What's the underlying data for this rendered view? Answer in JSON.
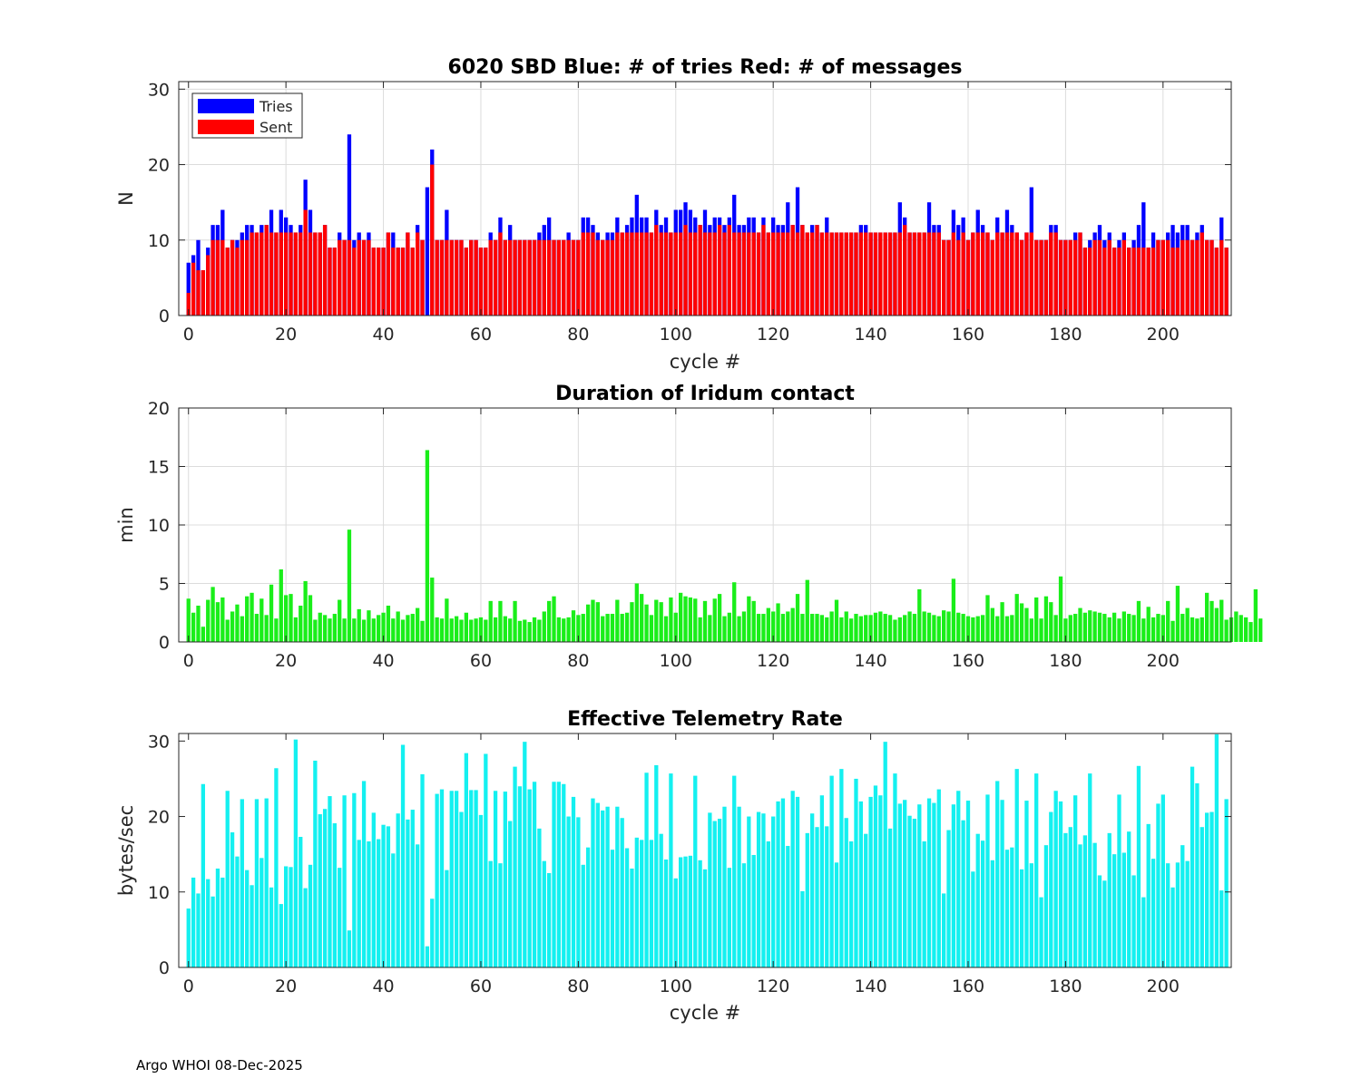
{
  "footer": "Argo WHOI 08-Dec-2025",
  "colors": {
    "tries": "#0000ff",
    "sent": "#ff0000",
    "duration": "#1aee1a",
    "rate": "#14f0f0",
    "grid": "#dcdcdc"
  },
  "chart_data": [
    {
      "type": "bar",
      "title": "6020 SBD  Blue: # of tries   Red: # of messages",
      "xlabel": "cycle #",
      "ylabel": "N",
      "xlim": [
        -2,
        214
      ],
      "ylim": [
        0,
        31
      ],
      "xticks": [
        0,
        20,
        40,
        60,
        80,
        100,
        120,
        140,
        160,
        180,
        200
      ],
      "yticks": [
        0,
        10,
        20,
        30
      ],
      "grid": true,
      "legend": {
        "position": "top-left",
        "entries": [
          "Tries",
          "Sent"
        ]
      },
      "x_start": 0,
      "series": [
        {
          "name": "Tries",
          "color": "#0000ff",
          "values": [
            7,
            8,
            10,
            6,
            9,
            12,
            12,
            14,
            9,
            10,
            10,
            11,
            12,
            12,
            11,
            12,
            12,
            14,
            11,
            14,
            13,
            12,
            11,
            12,
            18,
            14,
            11,
            11,
            12,
            9,
            9,
            11,
            10,
            24,
            10,
            11,
            10,
            11,
            9,
            9,
            9,
            11,
            11,
            9,
            9,
            11,
            9,
            12,
            10,
            17,
            22,
            10,
            10,
            14,
            10,
            10,
            10,
            9,
            10,
            10,
            9,
            9,
            11,
            10,
            13,
            10,
            12,
            10,
            10,
            10,
            10,
            10,
            11,
            12,
            13,
            10,
            10,
            10,
            11,
            10,
            10,
            13,
            13,
            12,
            11,
            10,
            11,
            11,
            13,
            11,
            12,
            13,
            16,
            13,
            13,
            11,
            14,
            12,
            13,
            11,
            14,
            14,
            15,
            14,
            13,
            12,
            14,
            12,
            13,
            13,
            12,
            13,
            16,
            12,
            12,
            13,
            13,
            11,
            13,
            11,
            13,
            12,
            12,
            15,
            12,
            17,
            12,
            11,
            12,
            12,
            11,
            13,
            11,
            11,
            11,
            11,
            11,
            11,
            12,
            12,
            11,
            11,
            11,
            11,
            11,
            11,
            15,
            13,
            11,
            11,
            11,
            11,
            15,
            12,
            12,
            10,
            10,
            14,
            12,
            13,
            10,
            11,
            14,
            12,
            11,
            10,
            13,
            11,
            14,
            12,
            11,
            10,
            11,
            17,
            10,
            10,
            10,
            12,
            12,
            10,
            10,
            10,
            11,
            11,
            9,
            10,
            11,
            12,
            10,
            11,
            9,
            10,
            11,
            9,
            10,
            12,
            15,
            9,
            11,
            10,
            10,
            11,
            12,
            11,
            12,
            12,
            10,
            11,
            12,
            10,
            10,
            9,
            13,
            9
          ]
        },
        {
          "name": "Sent",
          "color": "#ff0000",
          "values": [
            3,
            7,
            6,
            6,
            8,
            10,
            10,
            10,
            9,
            10,
            9,
            10,
            10,
            11,
            11,
            11,
            12,
            11,
            11,
            11,
            11,
            11,
            11,
            11,
            14,
            11,
            11,
            11,
            12,
            9,
            9,
            10,
            10,
            10,
            9,
            10,
            10,
            10,
            9,
            9,
            9,
            11,
            9,
            9,
            9,
            11,
            9,
            11,
            10,
            0,
            20,
            10,
            10,
            10,
            10,
            10,
            10,
            9,
            10,
            10,
            9,
            9,
            10,
            10,
            11,
            10,
            10,
            10,
            10,
            10,
            10,
            10,
            10,
            10,
            10,
            10,
            10,
            10,
            10,
            10,
            10,
            11,
            11,
            11,
            10,
            10,
            10,
            10,
            11,
            11,
            11,
            11,
            11,
            11,
            11,
            11,
            12,
            11,
            11,
            11,
            11,
            11,
            12,
            11,
            11,
            12,
            11,
            11,
            11,
            12,
            11,
            12,
            11,
            11,
            11,
            11,
            11,
            11,
            12,
            11,
            11,
            11,
            11,
            11,
            12,
            11,
            12,
            11,
            11,
            12,
            11,
            11,
            11,
            11,
            11,
            11,
            11,
            11,
            11,
            11,
            11,
            11,
            11,
            11,
            11,
            11,
            11,
            12,
            11,
            11,
            11,
            11,
            11,
            11,
            11,
            10,
            10,
            11,
            10,
            11,
            10,
            11,
            11,
            11,
            11,
            10,
            11,
            11,
            11,
            11,
            11,
            10,
            11,
            11,
            10,
            10,
            10,
            11,
            11,
            10,
            10,
            10,
            10,
            11,
            9,
            9,
            10,
            10,
            9,
            10,
            9,
            9,
            10,
            9,
            9,
            9,
            9,
            9,
            9,
            10,
            10,
            10,
            9,
            9,
            10,
            10,
            10,
            10,
            11,
            10,
            10,
            9,
            10,
            9
          ]
        }
      ]
    },
    {
      "type": "bar",
      "title": "Duration of Iridum contact",
      "xlabel": "",
      "ylabel": "min",
      "xlim": [
        -2,
        214
      ],
      "ylim": [
        0,
        20
      ],
      "xticks": [
        0,
        20,
        40,
        60,
        80,
        100,
        120,
        140,
        160,
        180,
        200
      ],
      "yticks": [
        0,
        5,
        10,
        15,
        20
      ],
      "grid": true,
      "x_start": 0,
      "series": [
        {
          "name": "Duration",
          "color": "#1aee1a",
          "values": [
            3.7,
            2.5,
            3.1,
            1.3,
            3.6,
            4.7,
            3.4,
            3.8,
            1.9,
            2.6,
            3.2,
            2.2,
            3.9,
            4.2,
            2.4,
            3.7,
            2.3,
            4.9,
            2.0,
            6.2,
            4.0,
            4.1,
            2.1,
            3.1,
            5.2,
            4.0,
            1.9,
            2.5,
            2.3,
            2.0,
            2.4,
            3.6,
            2.0,
            9.6,
            2.0,
            2.8,
            1.9,
            2.7,
            2.0,
            2.3,
            2.5,
            3.1,
            2.0,
            2.6,
            1.9,
            2.3,
            2.4,
            2.9,
            1.8,
            16.4,
            5.5,
            2.1,
            2.0,
            3.7,
            2.0,
            2.2,
            1.9,
            2.5,
            1.9,
            2.0,
            2.1,
            1.9,
            3.5,
            2.1,
            3.5,
            2.2,
            2.0,
            3.5,
            1.8,
            1.9,
            1.7,
            2.1,
            1.9,
            2.6,
            3.5,
            3.9,
            2.1,
            2.0,
            2.1,
            2.7,
            2.3,
            2.4,
            3.2,
            3.6,
            3.4,
            2.2,
            2.4,
            2.4,
            3.6,
            2.4,
            2.5,
            3.4,
            5.0,
            4.1,
            3.2,
            2.3,
            3.6,
            3.4,
            2.2,
            3.8,
            2.5,
            4.2,
            3.9,
            3.8,
            3.7,
            2.1,
            3.5,
            2.3,
            3.7,
            4.1,
            2.2,
            2.5,
            5.1,
            2.2,
            2.6,
            3.9,
            3.5,
            2.4,
            2.4,
            2.9,
            2.6,
            3.3,
            2.4,
            2.6,
            2.9,
            4.1,
            2.4,
            5.3,
            2.4,
            2.4,
            2.3,
            2.1,
            2.6,
            3.6,
            2.1,
            2.6,
            2.0,
            2.4,
            2.2,
            2.3,
            2.3,
            2.5,
            2.6,
            2.4,
            2.3,
            1.9,
            2.1,
            2.3,
            2.6,
            2.4,
            4.5,
            2.6,
            2.5,
            2.3,
            2.2,
            2.7,
            2.6,
            5.4,
            2.5,
            2.4,
            2.2,
            2.1,
            2.2,
            2.3,
            4.0,
            2.9,
            2.2,
            3.4,
            2.2,
            2.3,
            4.1,
            3.3,
            2.9,
            2.0,
            3.8,
            2.0,
            3.9,
            3.4,
            2.3,
            5.6,
            2.0,
            2.3,
            2.4,
            2.9,
            2.5,
            2.7,
            2.6,
            2.5,
            2.4,
            2.1,
            2.5,
            2.0,
            2.6,
            2.4,
            2.3,
            3.5,
            2.0,
            3.0,
            2.1,
            2.4,
            2.3,
            3.5,
            1.8,
            4.8,
            2.4,
            2.9,
            2.1,
            2.0,
            2.1,
            4.2,
            3.5,
            2.9,
            3.6,
            1.9,
            2.1,
            2.6,
            2.3,
            2.1,
            1.7,
            4.5,
            2.0
          ]
        }
      ]
    },
    {
      "type": "bar",
      "title": "Effective Telemetry Rate",
      "xlabel": "cycle #",
      "ylabel": "bytes/sec",
      "xlim": [
        -2,
        214
      ],
      "ylim": [
        0,
        31
      ],
      "xticks": [
        0,
        20,
        40,
        60,
        80,
        100,
        120,
        140,
        160,
        180,
        200
      ],
      "yticks": [
        0,
        10,
        20,
        30
      ],
      "grid": false,
      "x_start": 0,
      "series": [
        {
          "name": "Rate",
          "color": "#14f0f0",
          "values": [
            7.8,
            11.9,
            9.8,
            24.3,
            11.7,
            9.4,
            13.1,
            11.9,
            23.4,
            17.9,
            14.7,
            22.3,
            12.9,
            10.9,
            22.3,
            14.5,
            22.4,
            10.6,
            26.4,
            8.4,
            13.4,
            13.3,
            30.2,
            17.3,
            10.5,
            13.6,
            27.4,
            20.3,
            21.0,
            22.7,
            19.1,
            13.2,
            22.8,
            4.9,
            23.1,
            16.9,
            24.7,
            16.7,
            20.5,
            17.0,
            18.9,
            18.7,
            15.1,
            20.4,
            29.5,
            19.6,
            20.9,
            16.3,
            25.6,
            2.8,
            9.1,
            23.0,
            23.6,
            12.9,
            23.4,
            23.4,
            20.6,
            28.4,
            23.5,
            23.5,
            20.2,
            28.3,
            14.1,
            23.4,
            13.8,
            23.3,
            19.4,
            26.6,
            24.0,
            29.9,
            23.6,
            24.6,
            18.4,
            14.1,
            12.5,
            24.6,
            24.6,
            24.3,
            20.0,
            22.6,
            19.9,
            13.6,
            15.9,
            22.4,
            21.8,
            20.8,
            21.3,
            15.6,
            21.3,
            19.8,
            15.8,
            13.1,
            17.2,
            16.9,
            25.8,
            16.9,
            26.8,
            17.7,
            14.3,
            25.7,
            11.8,
            14.6,
            14.7,
            14.8,
            25.4,
            14.2,
            13.0,
            20.5,
            19.4,
            19.7,
            21.3,
            13.2,
            25.4,
            21.3,
            13.8,
            20.0,
            14.9,
            20.6,
            20.4,
            16.7,
            20.0,
            22.0,
            22.4,
            16.1,
            23.4,
            22.6,
            10.1,
            17.8,
            20.4,
            18.6,
            22.8,
            18.7,
            25.4,
            13.9,
            26.3,
            19.8,
            16.7,
            25.0,
            22.0,
            17.7,
            22.6,
            24.1,
            22.8,
            29.9,
            18.4,
            25.7,
            21.7,
            22.2,
            20.1,
            19.7,
            21.6,
            16.7,
            22.4,
            21.8,
            23.6,
            9.8,
            18.2,
            21.6,
            23.4,
            19.5,
            22.1,
            12.7,
            17.7,
            16.8,
            22.9,
            14.2,
            24.7,
            22.2,
            15.6,
            15.9,
            26.3,
            13.0,
            22.1,
            13.8,
            25.7,
            9.3,
            16.2,
            20.6,
            23.4,
            22.0,
            17.8,
            18.6,
            22.8,
            16.3,
            17.5,
            25.7,
            16.5,
            12.2,
            11.5,
            17.8,
            15.0,
            22.9,
            15.2,
            18.0,
            12.2,
            26.7,
            9.3,
            19.0,
            14.4,
            21.7,
            22.9,
            13.8,
            10.6,
            13.9,
            16.2,
            14.1,
            26.6,
            24.4,
            18.6,
            20.5,
            20.6,
            30.9,
            10.2,
            22.3
          ]
        }
      ]
    }
  ]
}
